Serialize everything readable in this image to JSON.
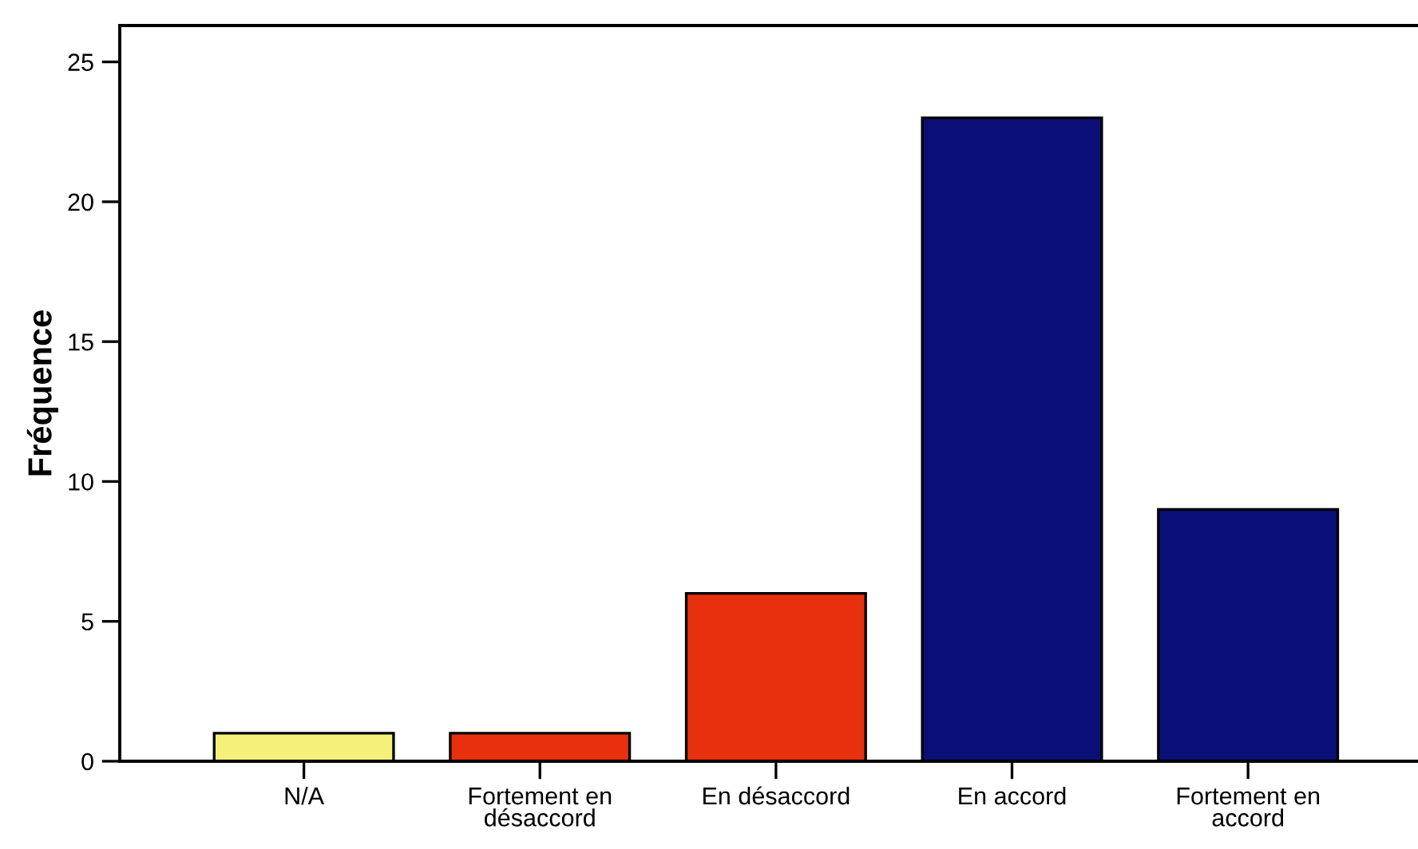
{
  "chart_data": {
    "type": "bar",
    "ylabel": "Fréquence",
    "categories": [
      "N/A",
      "Fortement en\ndésaccord",
      "En désaccord",
      "En accord",
      "Fortement en\naccord"
    ],
    "values": [
      1,
      1,
      6,
      23,
      9
    ],
    "colors": [
      "#f5f07a",
      "#e8300e",
      "#e8300e",
      "#0a0f78",
      "#0a0f78"
    ],
    "ylim": [
      0,
      26.3
    ],
    "yticks": [
      0,
      5,
      10,
      15,
      20,
      25
    ],
    "grid": false
  }
}
